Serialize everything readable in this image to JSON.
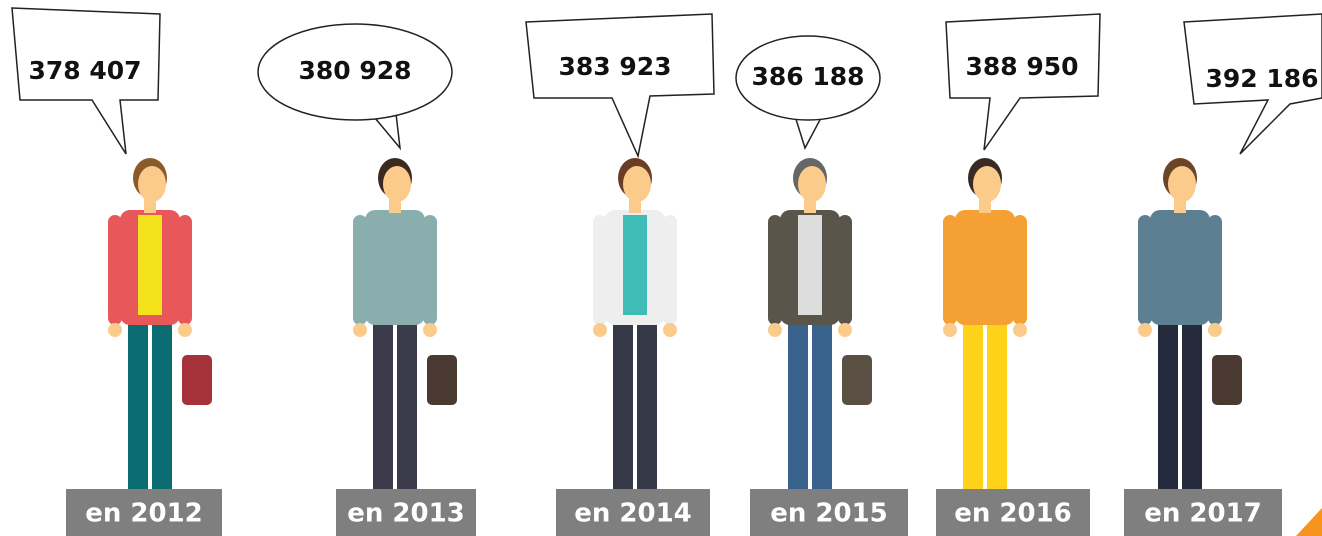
{
  "items": [
    {
      "value": "378 407",
      "year": "en 2012"
    },
    {
      "value": "380 928",
      "year": "en 2013"
    },
    {
      "value": "383 923",
      "year": "en 2014"
    },
    {
      "value": "386 188",
      "year": "en 2015"
    },
    {
      "value": "388 950",
      "year": "en 2016"
    },
    {
      "value": "392 186",
      "year": "en 2017"
    }
  ]
}
